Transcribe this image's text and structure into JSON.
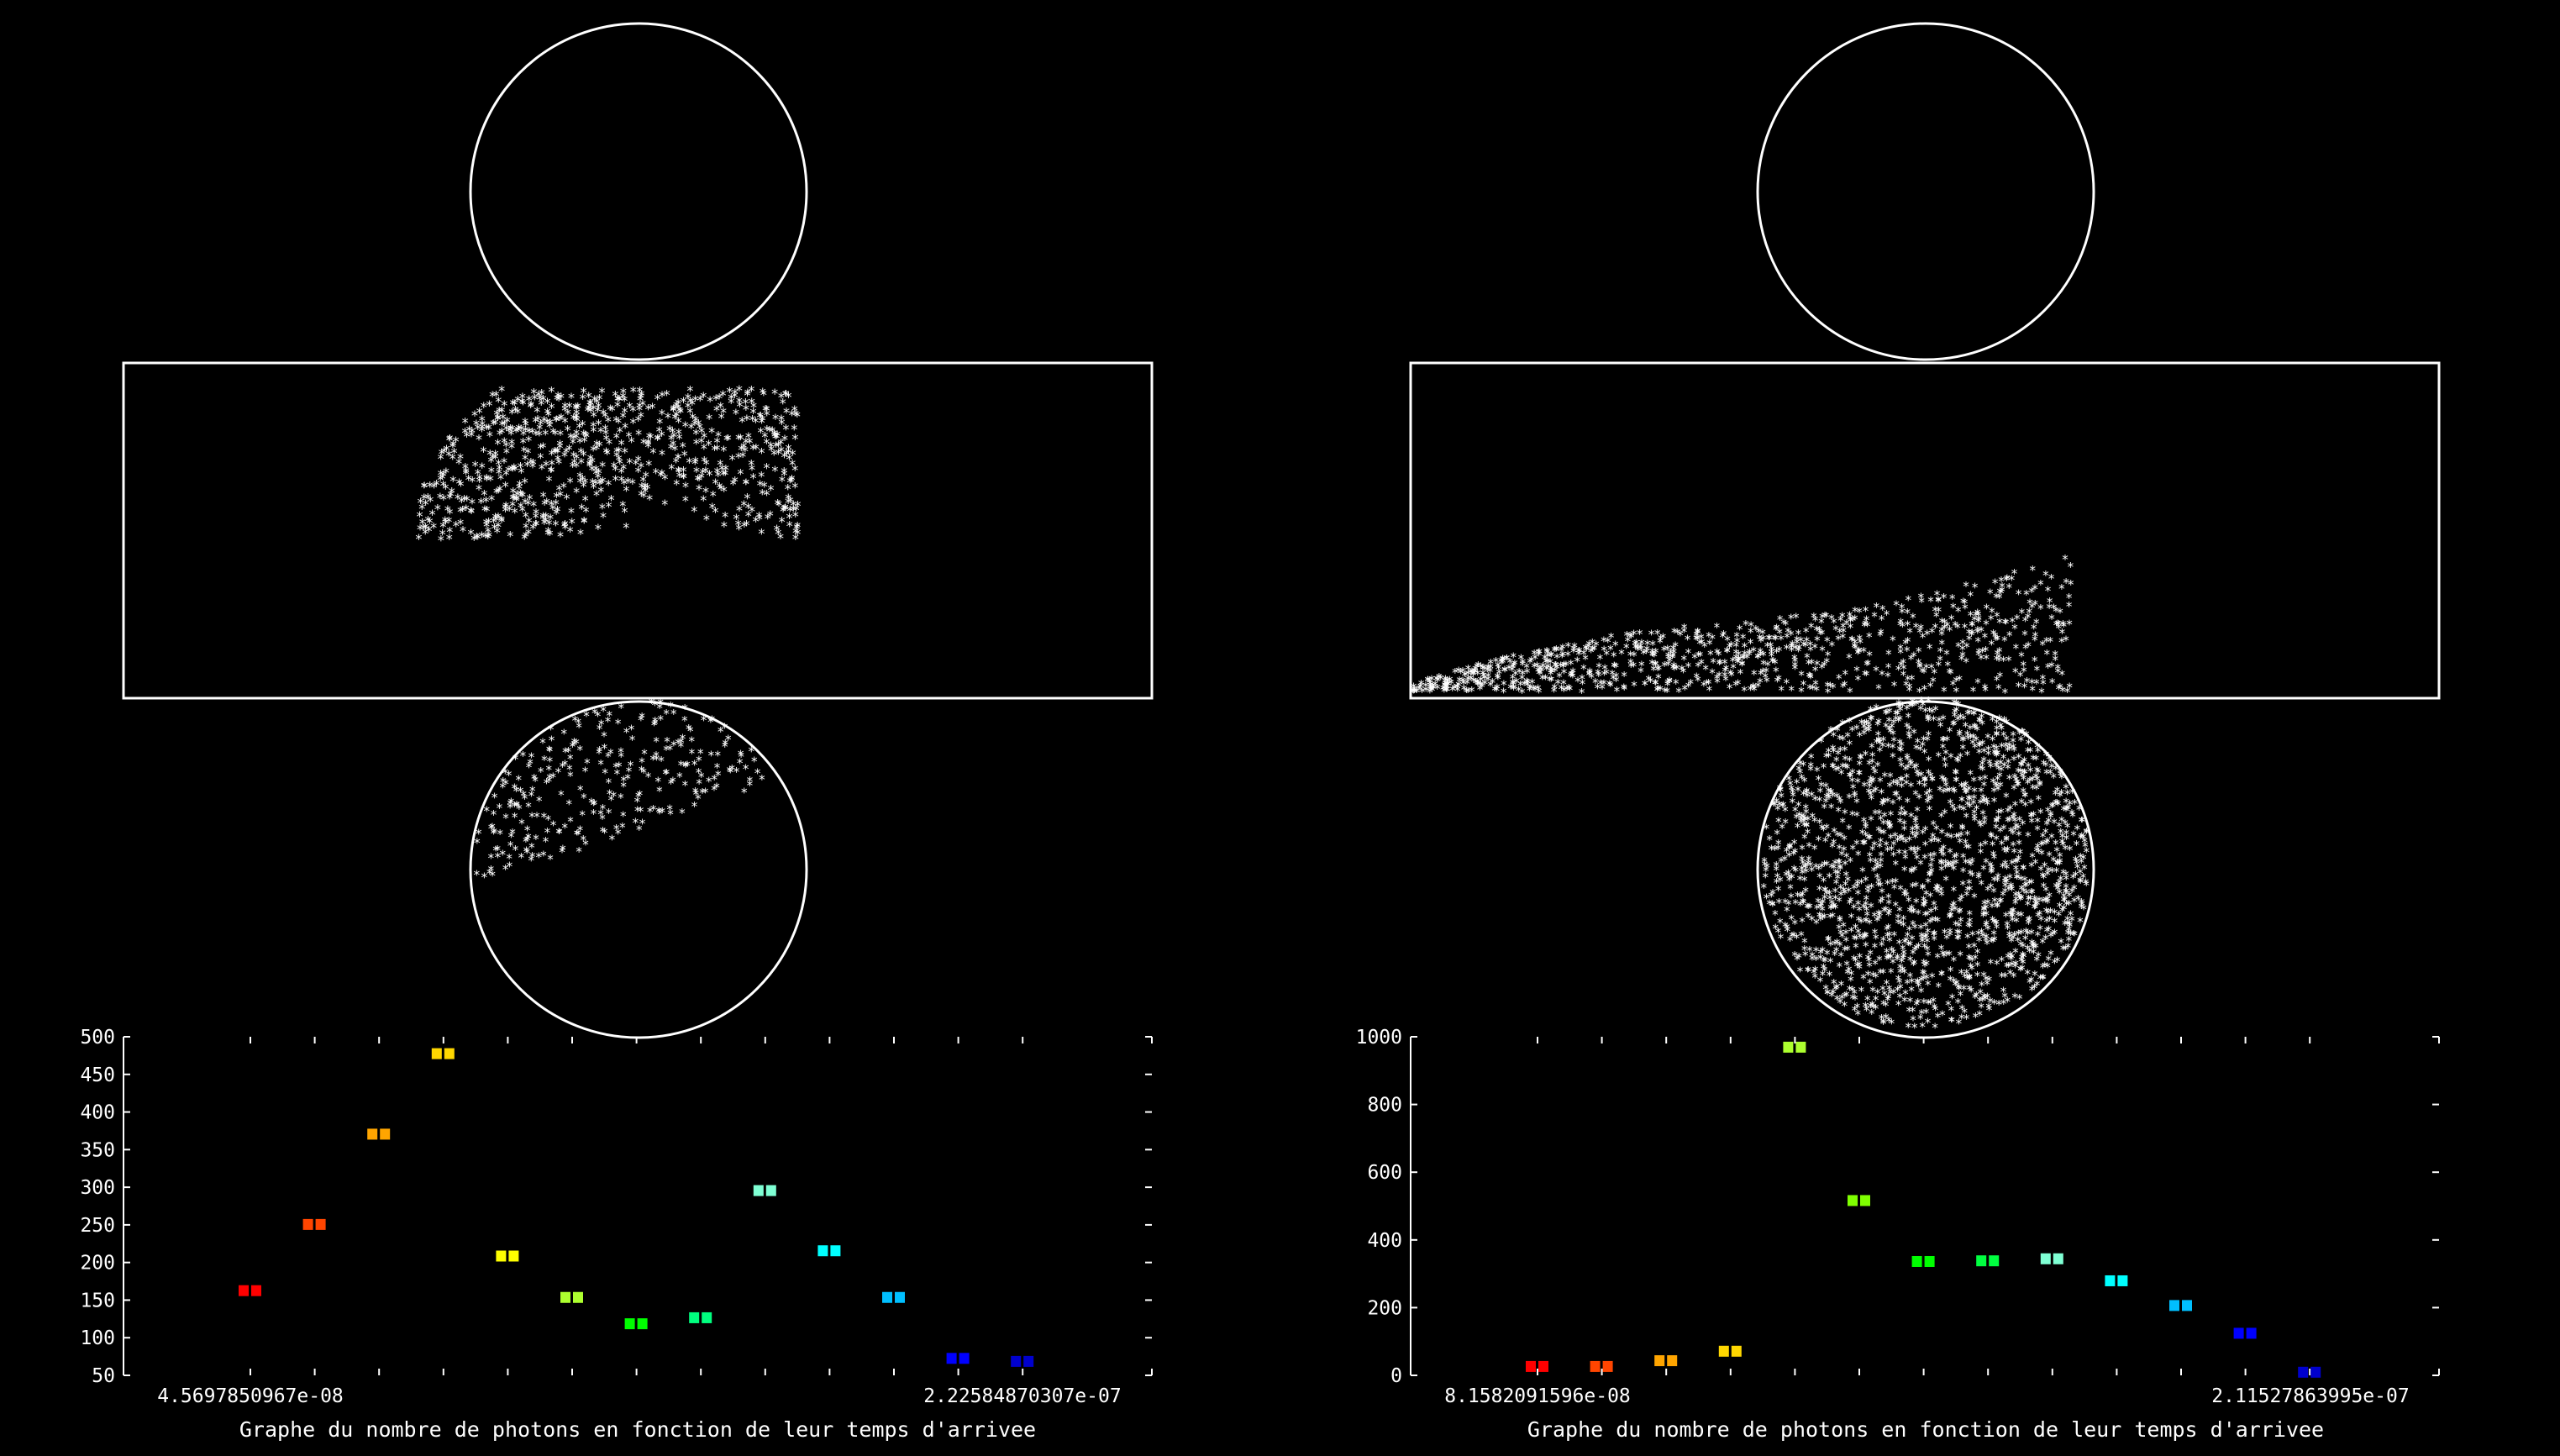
{
  "colors": {
    "background": "#000000",
    "frame": "#ffffff",
    "palette": [
      "#ff0000",
      "#ff4500",
      "#ffa500",
      "#ffd700",
      "#ffff00",
      "#adff2f",
      "#00ff00",
      "#00ff7f",
      "#7fffd4",
      "#00ffff",
      "#00bfff",
      "#0000ff",
      "#0000cd"
    ]
  },
  "panels": [
    {
      "name": "left",
      "scatter_pattern": "arc",
      "chart_data": {
        "type": "scatter",
        "title": "",
        "xlabel": "Graphe du nombre de photons en fonction de leur temps d'arrivee",
        "ylabel": "",
        "ylim": [
          50,
          500
        ],
        "yticks": [
          "50",
          "100",
          "150",
          "200",
          "250",
          "300",
          "350",
          "400",
          "450",
          "500"
        ],
        "xtick_labels": [
          "4.5697850967e-08",
          "2.22584870307e-07"
        ],
        "x_bins": 13,
        "series": [
          {
            "values": [
              162,
              250,
              370,
              477,
              208,
              153,
              118,
              126,
              295,
              215,
              153,
              72,
              68
            ],
            "colors": [
              "#ff0000",
              "#ff4500",
              "#ffa500",
              "#ffd700",
              "#ffff00",
              "#adff2f",
              "#00ff00",
              "#00ff7f",
              "#7fffd4",
              "#00ffff",
              "#00bfff",
              "#0000ff",
              "#0000cd"
            ]
          }
        ]
      }
    },
    {
      "name": "right",
      "scatter_pattern": "band",
      "chart_data": {
        "type": "scatter",
        "title": "",
        "xlabel": "Graphe du nombre de photons en fonction de leur temps d'arrivee",
        "ylabel": "",
        "ylim": [
          0,
          1000
        ],
        "yticks": [
          "0",
          "200",
          "400",
          "600",
          "800",
          "1000"
        ],
        "xtick_labels": [
          "8.1582091596e-08",
          "2.11527863995e-07"
        ],
        "x_bins": 13,
        "series": [
          {
            "values": [
              25,
              25,
              42,
              70,
              968,
              515,
              335,
              337,
              343,
              278,
              205,
              123,
              8
            ],
            "colors": [
              "#ff0000",
              "#ff4500",
              "#ffa500",
              "#ffd700",
              "#adff2f",
              "#7fff00",
              "#00ff00",
              "#00ff40",
              "#7fffd4",
              "#00ffff",
              "#00bfff",
              "#0000ff",
              "#0000cd"
            ]
          }
        ]
      }
    }
  ]
}
